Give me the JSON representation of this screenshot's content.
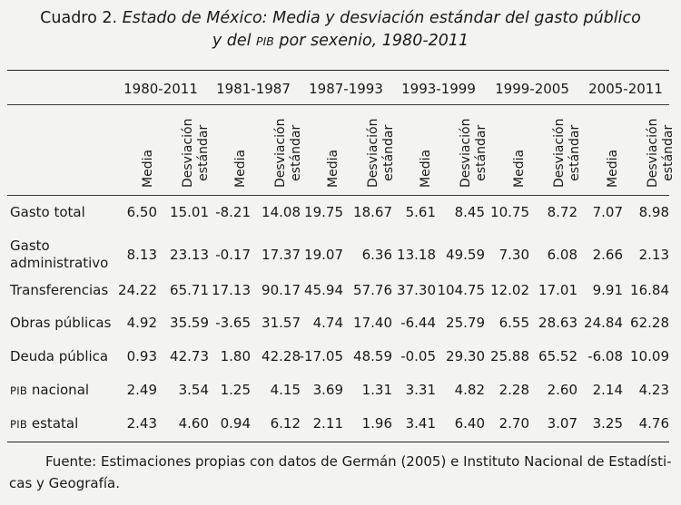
{
  "title": {
    "prefix": "Cuadro 2.",
    "italic_line1": "Estado de México: Media  y desviación estándar del gasto público",
    "line2_a": "y del ",
    "line2_sc": "PIB",
    "line2_b": " por sexenio, 1980-2011"
  },
  "periods": [
    "1980-2011",
    "1981-1987",
    "1987-1993",
    "1993-1999",
    "1999-2005",
    "2005-2011"
  ],
  "subheaders": {
    "media": "Media",
    "desv_1": "Desviación",
    "desv_2": "estándar"
  },
  "rows": [
    {
      "label": "Gasto total",
      "values": [
        "6.50",
        "15.01",
        "-8.21",
        "14.08",
        "19.75",
        "18.67",
        "5.61",
        "8.45",
        "10.75",
        "8.72",
        "7.07",
        "8.98"
      ]
    },
    {
      "label_1": "Gasto",
      "label_2": "administrativo",
      "values": [
        "8.13",
        "23.13",
        "-0.17",
        "17.37",
        "19.07",
        "6.36",
        "13.18",
        "49.59",
        "7.30",
        "6.08",
        "2.66",
        "2.13"
      ]
    },
    {
      "label": "Transferencias",
      "values": [
        "24.22",
        "65.71",
        "17.13",
        "90.17",
        "45.94",
        "57.76",
        "37.30",
        "104.75",
        "12.02",
        "17.01",
        "9.91",
        "16.84"
      ]
    },
    {
      "label": "Obras públicas",
      "values": [
        "4.92",
        "35.59",
        "-3.65",
        "31.57",
        "4.74",
        "17.40",
        "-6.44",
        "25.79",
        "6.55",
        "28.63",
        "24.84",
        "62.28"
      ]
    },
    {
      "label": "Deuda pública",
      "values": [
        "0.93",
        "42.73",
        "1.80",
        "42.28",
        "-17.05",
        "48.59",
        "-0.05",
        "29.30",
        "25.88",
        "65.52",
        "-6.08",
        "10.09"
      ]
    },
    {
      "label_sc": "PIB",
      "label_rest": " nacional",
      "values": [
        "2.49",
        "3.54",
        "1.25",
        "4.15",
        "3.69",
        "1.31",
        "3.31",
        "4.82",
        "2.28",
        "2.60",
        "2.14",
        "4.23"
      ]
    },
    {
      "label_sc": "PIB",
      "label_rest": " estatal",
      "values": [
        "2.43",
        "4.60",
        "0.94",
        "6.12",
        "2.11",
        "1.96",
        "3.41",
        "6.40",
        "2.70",
        "3.07",
        "3.25",
        "4.76"
      ]
    }
  ],
  "footnote": {
    "line1": "Fuente: Estimaciones propias con datos de Germán (2005) e Instituto Nacional de Estadísti-",
    "line2": "cas y Geografía."
  }
}
